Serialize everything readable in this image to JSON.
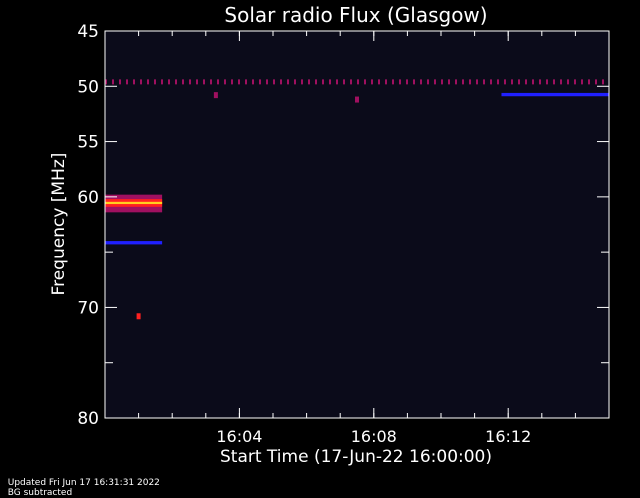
{
  "footer": {
    "updated": "Updated Fri Jun 17 16:31:31 2022",
    "note": "BG subtracted"
  },
  "chart_data": {
    "type": "heatmap",
    "title": "Solar radio Flux (Glasgow)",
    "xlabel": "Start Time (17-Jun-22 16:00:00)",
    "ylabel": "Frequency [MHz]",
    "x_unit": "minutes after 16:00",
    "xlim": [
      0,
      15
    ],
    "ylim": [
      45,
      80
    ],
    "y_inverted": true,
    "x_ticks": [
      {
        "value": 4,
        "label": "16:04"
      },
      {
        "value": 8,
        "label": "16:08"
      },
      {
        "value": 12,
        "label": "16:12"
      }
    ],
    "x_minor_step": 1,
    "y_ticks": [
      {
        "value": 45,
        "label": "45"
      },
      {
        "value": 50,
        "label": "50"
      },
      {
        "value": 55,
        "label": "55"
      },
      {
        "value": 60,
        "label": "60"
      },
      {
        "value": 70,
        "label": "70"
      },
      {
        "value": 80,
        "label": "80"
      }
    ],
    "y_minor": [
      65,
      75
    ],
    "colormap": [
      "#0a0a1e",
      "#1a1a6e",
      "#2020ff",
      "#a01060",
      "#ff2020",
      "#ffd020"
    ],
    "background_color": "#0b0b1a",
    "features": [
      {
        "kind": "band",
        "x": [
          0,
          1.7
        ],
        "y": [
          59.8,
          61.4
        ],
        "intensity": 0.55
      },
      {
        "kind": "band",
        "x": [
          0,
          1.7
        ],
        "y": [
          60.2,
          60.9
        ],
        "intensity": 0.85
      },
      {
        "kind": "band",
        "x": [
          0,
          1.7
        ],
        "y": [
          60.45,
          60.65
        ],
        "intensity": 1.0
      },
      {
        "kind": "band",
        "x": [
          0,
          1.7
        ],
        "y": [
          64.0,
          64.3
        ],
        "intensity": 0.3
      },
      {
        "kind": "dashed_line",
        "x": [
          0,
          15
        ],
        "y": 49.6,
        "intensity": 0.5
      },
      {
        "kind": "spot",
        "x": 3.3,
        "y": 50.8,
        "intensity": 0.5
      },
      {
        "kind": "spot",
        "x": 7.5,
        "y": 51.2,
        "intensity": 0.5
      },
      {
        "kind": "spot",
        "x": 1.0,
        "y": 70.8,
        "intensity": 0.75
      },
      {
        "kind": "band",
        "x": [
          11.8,
          15
        ],
        "y": [
          50.6,
          50.9
        ],
        "intensity": 0.45
      }
    ]
  }
}
